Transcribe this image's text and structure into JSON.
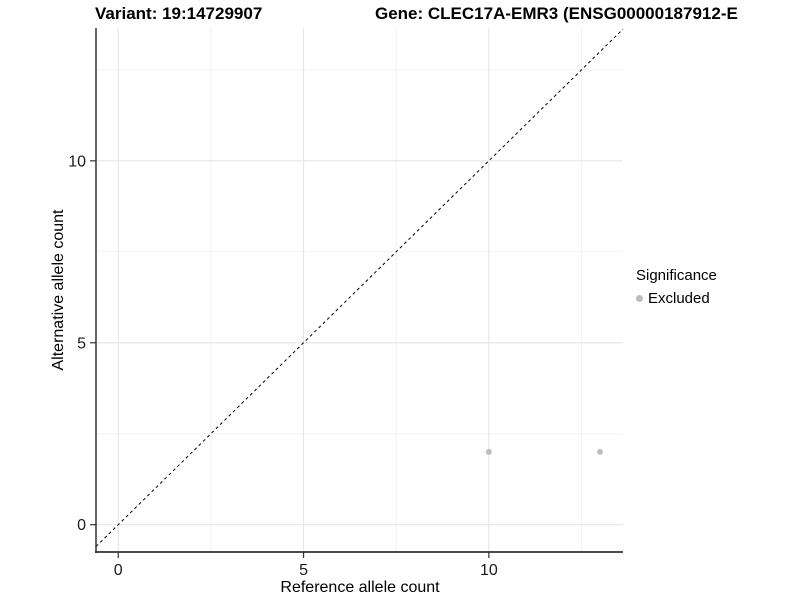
{
  "header": {
    "variant_title": "Variant: 19:14729907",
    "gene_title": "Gene: CLEC17A-EMR3 (ENSG00000187912-E"
  },
  "chart_data": {
    "type": "scatter",
    "xlabel": "Reference allele count",
    "ylabel": "Alternative allele count",
    "xlim": [
      -0.6,
      13.62
    ],
    "ylim": [
      -0.75,
      13.65
    ],
    "x_major_ticks": [
      0,
      5,
      10
    ],
    "y_major_ticks": [
      0,
      5,
      10
    ],
    "x_minor_ticks": [
      2.5,
      7.5,
      12.5
    ],
    "y_minor_ticks": [
      2.5,
      7.5,
      12.5
    ],
    "grid": true,
    "identity_line": {
      "style": "dashed",
      "color": "#000000"
    },
    "series": [
      {
        "name": "Excluded",
        "color": "#bdbdbd",
        "points": [
          {
            "x": 10,
            "y": 2
          },
          {
            "x": 13,
            "y": 2
          }
        ]
      }
    ],
    "legend": {
      "position": "right",
      "title": "Significance",
      "items": [
        {
          "label": "Excluded",
          "color": "#bdbdbd"
        }
      ]
    },
    "colors": {
      "grid_major": "#e6e6e6",
      "grid_minor": "#f2f2f2",
      "axis_line": "#333333",
      "tick_text": "#1a1a1a",
      "point": "#bdbdbd"
    }
  }
}
